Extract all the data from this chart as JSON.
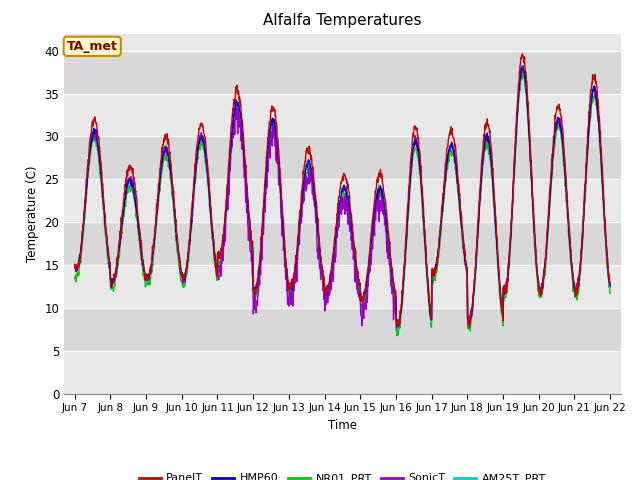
{
  "title": "Alfalfa Temperatures",
  "ylabel": "Temperature (C)",
  "xlabel": "Time",
  "annotation": "TA_met",
  "ylim": [
    0,
    42
  ],
  "yticks": [
    0,
    5,
    10,
    15,
    20,
    25,
    30,
    35,
    40
  ],
  "series_colors": {
    "PanelT": "#cc0000",
    "HMP60": "#0000cc",
    "NR01_PRT": "#00cc00",
    "SonicT": "#9900cc",
    "AM25T_PRT": "#00cccc"
  },
  "legend_labels": [
    "PanelT",
    "HMP60",
    "NR01_PRT",
    "SonicT",
    "AM25T_PRT"
  ],
  "plot_bg": "#e8e8e8",
  "band_light": "#e8e8e8",
  "band_dark": "#d8d8d8",
  "n_days": 15,
  "start_day": 7,
  "samples_per_day": 96,
  "daily_peaks": [
    30.5,
    25.0,
    28.5,
    30.0,
    34.0,
    32.0,
    27.0,
    24.0,
    24.0,
    29.5,
    29.0,
    30.0,
    38.0,
    32.0,
    35.5
  ],
  "daily_troughs": [
    14.5,
    13.0,
    13.5,
    13.5,
    16.0,
    12.0,
    12.5,
    12.0,
    11.0,
    8.0,
    14.0,
    8.5,
    12.0,
    12.0,
    12.0
  ]
}
